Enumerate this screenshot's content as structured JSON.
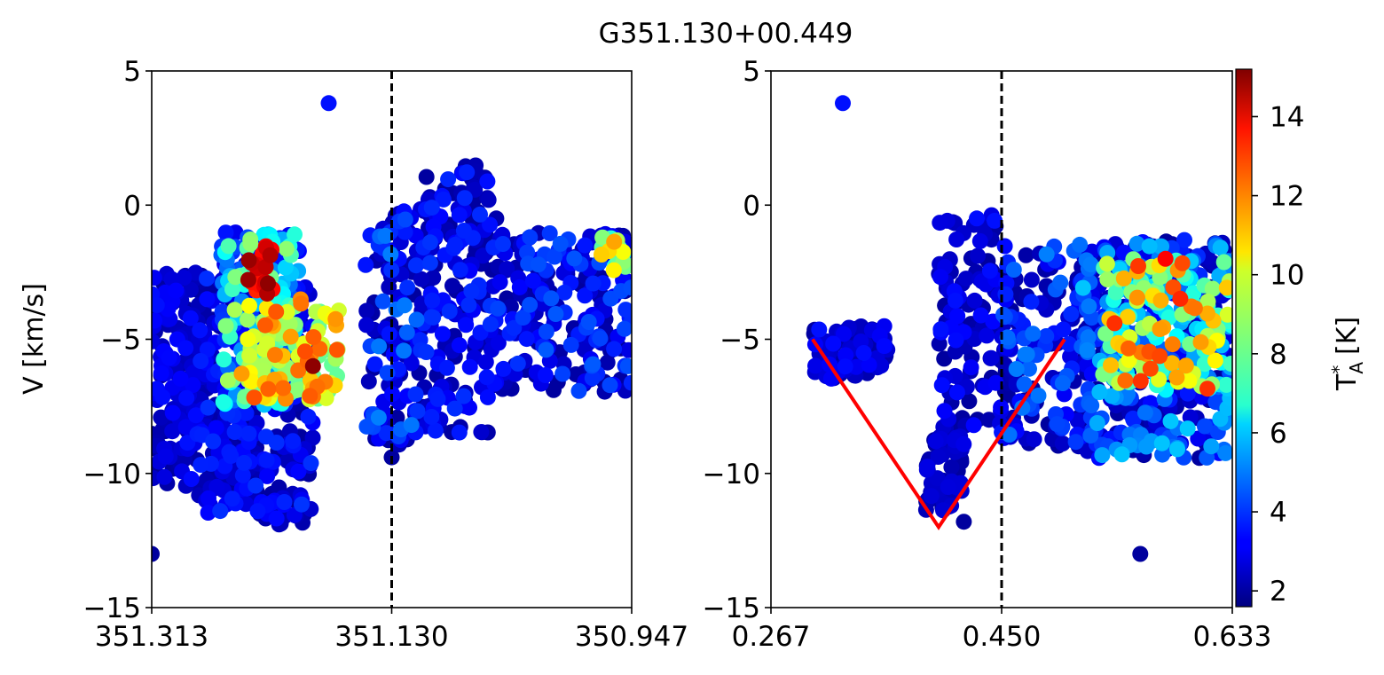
{
  "figure": {
    "title": "G351.130+00.449"
  },
  "chart_data": [
    {
      "type": "scatter",
      "panel": "left",
      "xlabel": "",
      "ylabel": "V [km/s]",
      "xlim": [
        351.313,
        350.947
      ],
      "ylim": [
        -15,
        5
      ],
      "x_ticks": [
        "351.313",
        "351.130",
        "350.947"
      ],
      "x_tick_values": [
        351.313,
        351.13,
        350.947
      ],
      "y_ticks": [
        "5",
        "0",
        "−5",
        "−10",
        "−15"
      ],
      "y_tick_values": [
        5,
        0,
        -5,
        -10,
        -15
      ],
      "vline": {
        "x": 351.13,
        "style": "dashed",
        "color": "#000000"
      },
      "colormap": "jet",
      "color_range": [
        1.6,
        15.2
      ],
      "clusters": [
        {
          "x": [
            351.313,
            351.28
          ],
          "v": [
            -2.5,
            -10.5
          ],
          "t": [
            2,
            3.5
          ],
          "n": 160
        },
        {
          "x": [
            351.28,
            351.24
          ],
          "v": [
            -2.5,
            -11.5
          ],
          "t": [
            2,
            4
          ],
          "n": 200
        },
        {
          "x": [
            351.24,
            351.19
          ],
          "v": [
            -3,
            -12
          ],
          "t": [
            2,
            4
          ],
          "n": 200
        },
        {
          "x": [
            351.26,
            351.2
          ],
          "v": [
            -1,
            -7.5
          ],
          "t": [
            3,
            9
          ],
          "n": 200
        },
        {
          "x": [
            351.245,
            351.17
          ],
          "v": [
            -3.5,
            -7.3
          ],
          "t": [
            8,
            12.5
          ],
          "n": 110
        },
        {
          "x": [
            351.24,
            351.22
          ],
          "v": [
            -1.5,
            -3.3
          ],
          "t": [
            13,
            15
          ],
          "n": 22
        },
        {
          "x": [
            351.15,
            351.11
          ],
          "v": [
            -0.2,
            -9
          ],
          "t": [
            2,
            5
          ],
          "n": 120
        },
        {
          "x": [
            351.11,
            351.05
          ],
          "v": [
            1.5,
            -8.5
          ],
          "t": [
            2,
            4
          ],
          "n": 200
        },
        {
          "x": [
            351.05,
            350.947
          ],
          "v": [
            -1,
            -7
          ],
          "t": [
            2,
            4.5
          ],
          "n": 220
        },
        {
          "x": [
            350.97,
            350.947
          ],
          "v": [
            -1.2,
            -2.5
          ],
          "t": [
            7,
            12
          ],
          "n": 18
        }
      ],
      "highlights": [
        {
          "x": 351.178,
          "v": 3.8,
          "t": 3.5
        },
        {
          "x": 351.313,
          "v": -13.0,
          "t": 2.0
        },
        {
          "x": 351.13,
          "v": -9.4,
          "t": 2.0
        },
        {
          "x": 351.19,
          "v": -6.0,
          "t": 15.0
        },
        {
          "x": 351.225,
          "v": -3.3,
          "t": 14.5
        }
      ]
    },
    {
      "type": "scatter",
      "panel": "right",
      "xlabel": "",
      "ylabel": "",
      "xlim": [
        0.267,
        0.633
      ],
      "ylim": [
        -15,
        5
      ],
      "x_ticks": [
        "0.267",
        "0.450",
        "0.633"
      ],
      "x_tick_values": [
        0.267,
        0.45,
        0.633
      ],
      "y_ticks": [
        "5",
        "0",
        "−5",
        "−10",
        "−15"
      ],
      "y_tick_values": [
        5,
        0,
        -5,
        -10,
        -15
      ],
      "vline": {
        "x": 0.45,
        "style": "dashed",
        "color": "#000000"
      },
      "red_line": {
        "x": [
          0.3,
          0.4,
          0.5
        ],
        "v": [
          -5,
          -12,
          -5
        ],
        "color": "#ff0000"
      },
      "colormap": "jet",
      "color_range": [
        1.6,
        15.2
      ],
      "clusters": [
        {
          "x": [
            0.3,
            0.36
          ],
          "v": [
            -4.5,
            -6.5
          ],
          "t": [
            2,
            3.5
          ],
          "n": 80
        },
        {
          "x": [
            0.39,
            0.42
          ],
          "v": [
            -8.5,
            -11.5
          ],
          "t": [
            2,
            3
          ],
          "n": 60
        },
        {
          "x": [
            0.4,
            0.45
          ],
          "v": [
            -0.3,
            -8.5
          ],
          "t": [
            2,
            3.5
          ],
          "n": 110
        },
        {
          "x": [
            0.45,
            0.52
          ],
          "v": [
            -1.5,
            -9
          ],
          "t": [
            2,
            5
          ],
          "n": 160
        },
        {
          "x": [
            0.51,
            0.633
          ],
          "v": [
            -1.3,
            -9.5
          ],
          "t": [
            2,
            6
          ],
          "n": 420
        },
        {
          "x": [
            0.53,
            0.633
          ],
          "v": [
            -2,
            -7
          ],
          "t": [
            6,
            13
          ],
          "n": 160
        }
      ],
      "highlights": [
        {
          "x": 0.324,
          "v": 3.8,
          "t": 3.5
        },
        {
          "x": 0.42,
          "v": -11.8,
          "t": 2.0
        },
        {
          "x": 0.56,
          "v": -13.0,
          "t": 2.0
        },
        {
          "x": 0.58,
          "v": -2.0,
          "t": 13.5
        }
      ]
    }
  ],
  "colorbar": {
    "label_main": "T",
    "label_sup": "*",
    "label_sub": "A",
    "label_unit": "[K]",
    "ticks": [
      "14",
      "12",
      "10",
      "8",
      "6",
      "4",
      "2"
    ],
    "tick_values": [
      14,
      12,
      10,
      8,
      6,
      4,
      2
    ],
    "range": [
      1.6,
      15.2
    ],
    "colormap": "jet"
  }
}
